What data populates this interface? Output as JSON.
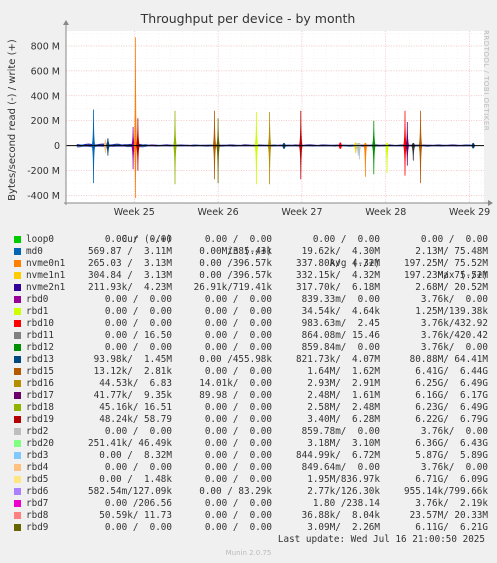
{
  "chart_data": {
    "type": "line",
    "title": "Throughput per device - by month",
    "ylabel": "Bytes/second read (-) / write (+)",
    "xlabel": "",
    "ylim": [
      -460,
      920
    ],
    "ytick_values": [
      -400,
      -200,
      0,
      200,
      400,
      600,
      800
    ],
    "ytick_labels": [
      "-400 M",
      "-200 M",
      "0",
      "200 M",
      "400 M",
      "600 M",
      "800 M"
    ],
    "xticks": [
      {
        "label": "Week 25",
        "day": 7
      },
      {
        "label": "Week 26",
        "day": 14
      },
      {
        "label": "Week 27",
        "day": 21
      },
      {
        "label": "Week 28",
        "day": 28
      },
      {
        "label": "Week 29",
        "day": 35
      }
    ],
    "xlim_days": [
      1.3,
      36.2
    ],
    "watermark": "RRDTOOL / TOBI OETIKER",
    "grid": true,
    "spikes": [
      {
        "series": "md0",
        "day": 3.6,
        "up": 290,
        "down": -300
      },
      {
        "series": "rbd4",
        "day": 4.6,
        "up": 50,
        "down": -60
      },
      {
        "series": "rbd13",
        "day": 4.8,
        "up": 60,
        "down": -80
      },
      {
        "series": "rbd0",
        "day": 6.9,
        "up": 150,
        "down": -190
      },
      {
        "series": "nvme0n1",
        "day": 7.1,
        "up": 870,
        "down": -420
      },
      {
        "series": "rbd19",
        "day": 7.3,
        "up": 220,
        "down": -200
      },
      {
        "series": "rbd18",
        "day": 10.4,
        "up": 280,
        "down": -310
      },
      {
        "series": "rbd15",
        "day": 13.7,
        "up": 280,
        "down": -270
      },
      {
        "series": "rbd9",
        "day": 14.0,
        "up": 220,
        "down": -300
      },
      {
        "series": "rbd1",
        "day": 17.2,
        "up": 270,
        "down": -310
      },
      {
        "series": "rbd16",
        "day": 18.3,
        "up": 270,
        "down": -310
      },
      {
        "series": "rbd13",
        "day": 19.5,
        "up": 10,
        "down": -20
      },
      {
        "series": "rbd19",
        "day": 20.9,
        "up": 280,
        "down": -270
      },
      {
        "series": "rbd10",
        "day": 24.2,
        "up": 20,
        "down": -20
      },
      {
        "series": "nvme1n1",
        "day": 25.5,
        "up": 20,
        "down": -60
      },
      {
        "series": "rbd3",
        "day": 25.7,
        "up": 10,
        "down": -80
      },
      {
        "series": "rbd2",
        "day": 25.8,
        "up": 10,
        "down": -110
      },
      {
        "series": "nvme0n1",
        "day": 26.3,
        "up": 10,
        "down": -250
      },
      {
        "series": "rbd12",
        "day": 27.0,
        "up": 200,
        "down": -230
      },
      {
        "series": "rbd1",
        "day": 28.1,
        "up": 10,
        "down": -220
      },
      {
        "series": "rbd10",
        "day": 29.6,
        "up": 280,
        "down": -240
      },
      {
        "series": "rbd17",
        "day": 29.8,
        "up": 190,
        "down": -160
      },
      {
        "series": "rbd14",
        "day": 30.3,
        "up": 10,
        "down": -120
      },
      {
        "series": "rbd15",
        "day": 30.9,
        "up": 280,
        "down": -300
      },
      {
        "series": "rbd13",
        "day": 35.3,
        "up": 10,
        "down": -10
      }
    ]
  },
  "legend": {
    "columns": {
      "cur": "Cur (-/+)",
      "min": "Min (-/+)",
      "avg": "Avg (-/+)",
      "max": "Max (-/+)"
    },
    "rows": [
      {
        "name": "loop0",
        "color": "#00cc00",
        "cur": "0.00 /  0.00",
        "min": "0.00 /  0.00",
        "avg": "0.00 /  0.00",
        "max": "0.00 /  0.00"
      },
      {
        "name": "md0",
        "color": "#0066b3",
        "cur": "569.87 /  3.11M",
        "min": "0.00 /385.43k",
        "avg": "19.62k/  4.30M",
        "max": "2.13M/ 75.48M"
      },
      {
        "name": "nvme0n1",
        "color": "#ff8000",
        "cur": "265.03 /  3.13M",
        "min": "0.00 /396.57k",
        "avg": "337.80k/  4.32M",
        "max": "197.25M/ 75.52M"
      },
      {
        "name": "nvme1n1",
        "color": "#ffcc00",
        "cur": "304.84 /  3.13M",
        "min": "0.00 /396.57k",
        "avg": "332.15k/  4.32M",
        "max": "197.23M/ 75.52M"
      },
      {
        "name": "nvme2n1",
        "color": "#330099",
        "cur": "211.93k/  4.23M",
        "min": "26.91k/719.41k",
        "avg": "317.70k/  6.18M",
        "max": "2.68M/ 20.52M"
      },
      {
        "name": "rbd0",
        "color": "#990099",
        "cur": "0.00 /  0.00",
        "min": "0.00 /  0.00",
        "avg": "839.33m/  0.00",
        "max": "3.76k/  0.00"
      },
      {
        "name": "rbd1",
        "color": "#ccff00",
        "cur": "0.00 /  0.00",
        "min": "0.00 /  0.00",
        "avg": "34.54k/  4.64k",
        "max": "1.25M/139.38k"
      },
      {
        "name": "rbd10",
        "color": "#ff0000",
        "cur": "0.00 /  0.00",
        "min": "0.00 /  0.00",
        "avg": "983.63m/  2.45",
        "max": "3.76k/432.92"
      },
      {
        "name": "rbd11",
        "color": "#808080",
        "cur": "0.00 / 16.50",
        "min": "0.00 /  0.00",
        "avg": "864.08m/ 15.46",
        "max": "3.76k/420.42"
      },
      {
        "name": "rbd12",
        "color": "#008f00",
        "cur": "0.00 /  0.00",
        "min": "0.00 /  0.00",
        "avg": "859.84m/  0.00",
        "max": "3.76k/  0.00"
      },
      {
        "name": "rbd13",
        "color": "#00487d",
        "cur": "93.98k/  1.45M",
        "min": "0.00 /455.98k",
        "avg": "821.73k/  4.07M",
        "max": "80.88M/ 64.41M"
      },
      {
        "name": "rbd15",
        "color": "#b35a00",
        "cur": "13.12k/  2.81k",
        "min": "0.00 /  0.00",
        "avg": "1.64M/  1.62M",
        "max": "6.41G/  6.44G"
      },
      {
        "name": "rbd16",
        "color": "#b38f00",
        "cur": "44.53k/  6.83",
        "min": "14.01k/  0.00",
        "avg": "2.93M/  2.91M",
        "max": "6.25G/  6.49G"
      },
      {
        "name": "rbd17",
        "color": "#6b006b",
        "cur": "41.77k/  9.35k",
        "min": "89.98 /  0.00",
        "avg": "2.48M/  1.61M",
        "max": "6.16G/  6.17G"
      },
      {
        "name": "rbd18",
        "color": "#8fb300",
        "cur": "45.16k/ 16.51",
        "min": "0.00 /  0.00",
        "avg": "2.58M/  2.48M",
        "max": "6.23G/  6.49G"
      },
      {
        "name": "rbd19",
        "color": "#b30000",
        "cur": "48.24k/ 58.79",
        "min": "0.00 /  0.00",
        "avg": "3.40M/  6.28M",
        "max": "6.22G/  6.79G"
      },
      {
        "name": "rbd2",
        "color": "#bebebe",
        "cur": "0.00 /  0.00",
        "min": "0.00 /  0.00",
        "avg": "859.78m/  0.00",
        "max": "3.76k/  0.00"
      },
      {
        "name": "rbd20",
        "color": "#80ff80",
        "cur": "251.41k/ 46.49k",
        "min": "0.00 /  0.00",
        "avg": "3.18M/  3.10M",
        "max": "6.36G/  6.43G"
      },
      {
        "name": "rbd3",
        "color": "#80c9ff",
        "cur": "0.00 /  8.32M",
        "min": "0.00 /  0.00",
        "avg": "844.99k/  6.72M",
        "max": "5.87G/  5.89G"
      },
      {
        "name": "rbd4",
        "color": "#ffc080",
        "cur": "0.00 /  0.00",
        "min": "0.00 /  0.00",
        "avg": "849.64m/  0.00",
        "max": "3.76k/  0.00"
      },
      {
        "name": "rbd5",
        "color": "#ffe680",
        "cur": "0.00 /  1.48k",
        "min": "0.00 /  0.00",
        "avg": "1.95M/836.97k",
        "max": "6.71G/  6.09G"
      },
      {
        "name": "rbd6",
        "color": "#aa80ff",
        "cur": "582.54m/127.09k",
        "min": "0.00 / 83.29k",
        "avg": "2.77k/126.30k",
        "max": "955.14k/799.66k"
      },
      {
        "name": "rbd7",
        "color": "#ee00cc",
        "cur": "0.00 /206.56",
        "min": "0.00 /  0.00",
        "avg": "1.80 /238.14",
        "max": "3.76k/  2.19k"
      },
      {
        "name": "rbd8",
        "color": "#ff8080",
        "cur": "50.59k/ 11.73",
        "min": "0.00 /  0.00",
        "avg": "36.88k/  8.04k",
        "max": "23.57M/ 20.33M"
      },
      {
        "name": "rbd9",
        "color": "#666600",
        "cur": "0.00 /  0.00",
        "min": "0.00 /  0.00",
        "avg": "3.09M/  2.26M",
        "max": "6.11G/  6.21G"
      }
    ]
  },
  "footer": {
    "last_update": "Last update: Wed Jul 16 21:00:50 2025",
    "munin": "Munin 2.0.75"
  }
}
